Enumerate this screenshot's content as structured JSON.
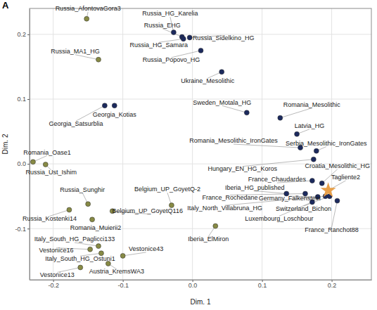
{
  "chart_data": {
    "type": "scatter",
    "title": "A",
    "x_label": "Dim. 1",
    "y_label": "Dim. 2",
    "xlim": [
      -0.234,
      0.257
    ],
    "ylim": [
      -0.179,
      0.24
    ],
    "xticks": [
      -0.2,
      -0.1,
      {
        "value": 0,
        "label": "0.0"
      },
      0.1,
      0.2
    ],
    "yticks": [
      -0.1,
      {
        "value": 0,
        "label": "0.0"
      },
      0.1,
      0.2
    ],
    "grid": true,
    "series": [
      {
        "color": "#878a45",
        "marker": "circle",
        "labels": [
          "Russia_AfontovaGora3",
          "Russia_MA1_HG",
          "Romania_Oase1",
          "Russia_Ust_Ishim",
          "Russia_Kostenki14",
          "Russia_Sunghir",
          "Belgium_UP_GoyetQ116",
          "Romania_Muierii2",
          "Belgium_UP_GoyetQ-2",
          "Iberia_ElMiron",
          "Italy_South_HG_Paglicci133",
          "Vestonice16",
          "Vestonice43",
          "Italy_South_HG_Ostuni1",
          "Austria_KremsWA3",
          "Vestonice13"
        ],
        "x": [
          -0.152,
          -0.135,
          -0.229,
          -0.211,
          -0.177,
          -0.15,
          -0.115,
          -0.144,
          -0.03,
          0.033,
          -0.135,
          -0.147,
          -0.1,
          -0.131,
          -0.121,
          -0.161
        ],
        "values": [
          0.224,
          0.161,
          0.003,
          -0.001,
          -0.071,
          -0.062,
          -0.073,
          -0.086,
          -0.064,
          -0.096,
          -0.127,
          -0.132,
          -0.142,
          -0.138,
          -0.154,
          -0.16
        ]
      },
      {
        "color": "#1c2a5e",
        "marker": "circle",
        "labels": [
          "Georgia_Satsurblia",
          "Georgia_Kotias",
          "Russia_HG_Karelia",
          "Russia_EHG",
          "Russia_HG_Samara",
          "Russia_Sidelkino_HG",
          "Russia_Popovo_HG",
          "Ukraine_Mesolithic",
          "Sweden_Motala_HG",
          "Romania_Mesolithic",
          "Latvia_HG",
          "Romania_Mesolithic_IronGates",
          "Serbia_Mesolithic_IronGates",
          "Hungary_EN_HG_Koros",
          "Croatia_Mesolithic_HG",
          "France_Chaudardes",
          "Iberia_HG_published",
          "France_Rochedane",
          "Germany_Falkenstein",
          "Italy_North_Villabruna_HG",
          "Switzerland_Bichon",
          "Luxembourg_Loschbour",
          "France_Ranchot88"
        ],
        "x": [
          -0.126,
          -0.112,
          -0.027,
          -0.015,
          -0.013,
          -0.004,
          0.012,
          0.042,
          0.078,
          0.126,
          0.15,
          0.155,
          0.178,
          0.174,
          0.186,
          0.172,
          0.135,
          0.162,
          0.18,
          0.191,
          0.197,
          0.172,
          0.208
        ],
        "values": [
          0.09,
          0.09,
          0.203,
          0.196,
          0.193,
          0.195,
          0.175,
          0.142,
          0.079,
          0.071,
          0.046,
          0.025,
          0.02,
          0.007,
          -0.03,
          -0.026,
          -0.046,
          -0.046,
          -0.051,
          -0.05,
          -0.05,
          -0.059,
          -0.057
        ]
      },
      {
        "color": "#e8a04a",
        "marker": "star",
        "labels": [
          "Tagliente2"
        ],
        "x": [
          0.195
        ],
        "values": [
          -0.041
        ]
      }
    ]
  }
}
